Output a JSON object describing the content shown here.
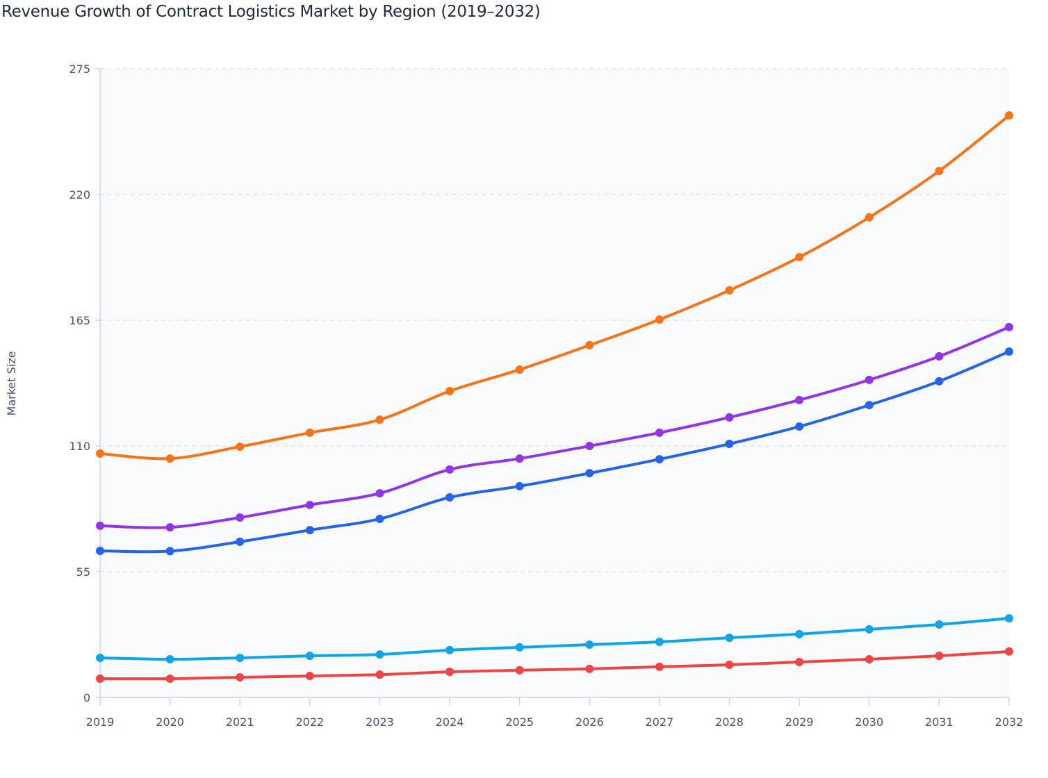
{
  "title": "Revenue Growth of Contract Logistics Market by Region (2019–2032)",
  "chart_data": {
    "type": "line",
    "title": "Revenue Growth of Contract Logistics Market by Region (2019–2032)",
    "xlabel": "",
    "ylabel": "Market Size",
    "x": [
      2019,
      2020,
      2021,
      2022,
      2023,
      2024,
      2025,
      2026,
      2027,
      2028,
      2029,
      2030,
      2031,
      2032
    ],
    "ylim": [
      0,
      275
    ],
    "yticks": [
      0,
      55,
      110,
      165,
      220,
      275
    ],
    "grid": true,
    "legend": "none",
    "series": [
      {
        "color": "#f97316",
        "values": [
          106.7,
          104.5,
          109.7,
          115.8,
          121.5,
          134.0,
          143.4,
          154.1,
          165.3,
          178.1,
          192.6,
          210.0,
          230.3,
          254.6
        ]
      },
      {
        "color": "#9333ea",
        "values": [
          75.1,
          74.4,
          78.7,
          84.2,
          89.3,
          99.7,
          104.5,
          110.0,
          115.8,
          122.5,
          130.1,
          138.9,
          149.2,
          162.0
        ]
      },
      {
        "color": "#2563eb",
        "values": [
          64.1,
          64.0,
          68.1,
          73.2,
          78.1,
          87.5,
          92.4,
          98.1,
          104.2,
          110.9,
          118.5,
          127.9,
          138.3,
          151.3
        ]
      },
      {
        "color": "#0ea5e9",
        "values": [
          17.3,
          16.7,
          17.3,
          18.2,
          18.8,
          20.7,
          21.9,
          23.1,
          24.3,
          26.1,
          27.7,
          29.8,
          31.9,
          34.6
        ]
      },
      {
        "color": "#ef4444",
        "values": [
          8.2,
          8.2,
          8.8,
          9.4,
          10.0,
          11.2,
          11.9,
          12.5,
          13.4,
          14.3,
          15.5,
          16.7,
          18.2,
          20.1
        ]
      }
    ]
  }
}
